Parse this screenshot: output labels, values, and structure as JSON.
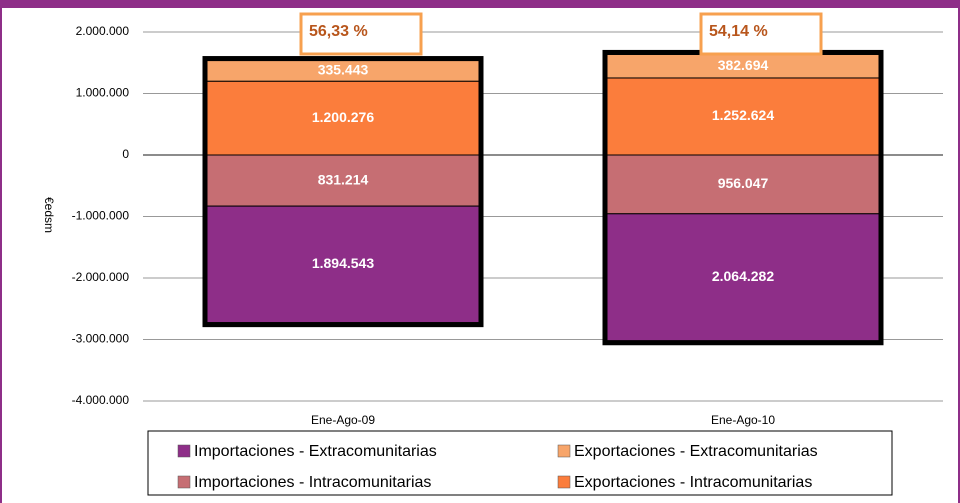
{
  "chart_data": {
    "type": "stacked_bar",
    "y_label": "€edsm",
    "categories": [
      "Ene-Ago-09",
      "Ene-Ago-10"
    ],
    "series": [
      {
        "name": "Importaciones - Extracomunitarias",
        "color": "#8e2e88",
        "values": [
          -1894543,
          -2064282
        ],
        "value_labels": [
          "1.894.543",
          "2.064.282"
        ]
      },
      {
        "name": "Exportaciones - Extracomunitarias",
        "color": "#f7a56a",
        "values": [
          335443,
          382694
        ],
        "value_labels": [
          "335.443",
          "382.694"
        ]
      },
      {
        "name": "Importaciones - Intracomunitarias",
        "color": "#c66e73",
        "values": [
          -831214,
          -956047
        ],
        "value_labels": [
          "831.214",
          "956.047"
        ]
      },
      {
        "name": "Exportaciones - Intracomunitarias",
        "color": "#fb7d3c",
        "values": [
          1200276,
          1252624
        ],
        "value_labels": [
          "1.200.276",
          "1.252.624"
        ]
      }
    ],
    "annotations": [
      "56,33 %",
      "54,14 %"
    ],
    "ylim": [
      -4000000,
      2000000
    ],
    "yticks": [
      {
        "value": -4000000,
        "label": "-4.000.000"
      },
      {
        "value": -3000000,
        "label": "-3.000.000"
      },
      {
        "value": -2000000,
        "label": "-2.000.000"
      },
      {
        "value": -1000000,
        "label": "-1.000.000"
      },
      0,
      {
        "value": 1000000,
        "label": "1.000.000"
      },
      {
        "value": 2000000,
        "label": "2.000.000"
      }
    ],
    "grid": true
  }
}
